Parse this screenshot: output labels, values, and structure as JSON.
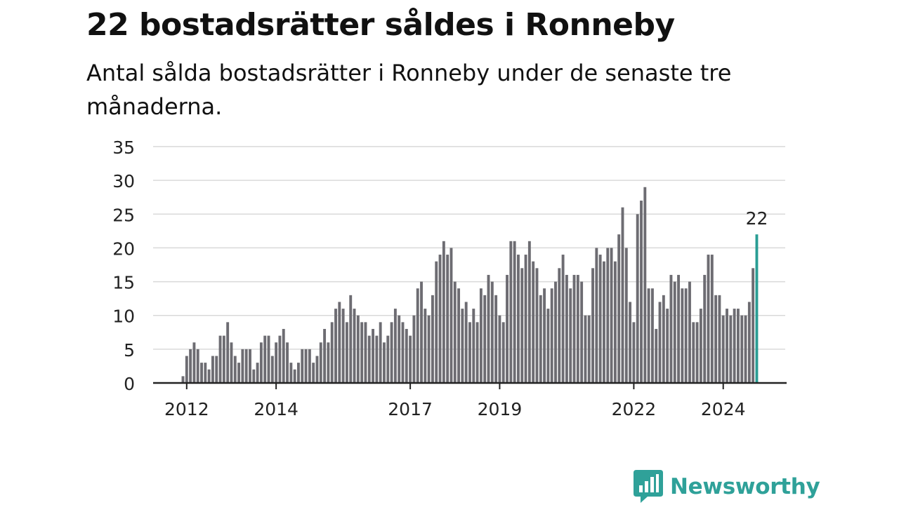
{
  "title": "22 bostadsrätter såldes i Ronneby",
  "subtitle": "Antal sålda bostadsrätter i Ronneby under de senaste tre månaderna.",
  "brand": {
    "name": "Newsworthy",
    "logo_icon": "bar-chart-speech-bubble-icon",
    "color": "#2fa199"
  },
  "chart_data": {
    "type": "bar",
    "title": "22 bostadsrätter såldes i Ronneby",
    "subtitle": "Antal sålda bostadsrätter i Ronneby under de senaste tre månaderna.",
    "xlabel": "",
    "ylabel": "",
    "ylim": [
      0,
      35
    ],
    "yticks": [
      "0",
      "5",
      "10",
      "15",
      "20",
      "25",
      "30",
      "35"
    ],
    "xticks": [
      {
        "label": "2012",
        "index": 1
      },
      {
        "label": "2014",
        "index": 25
      },
      {
        "label": "2017",
        "index": 61
      },
      {
        "label": "2019",
        "index": 85
      },
      {
        "label": "2022",
        "index": 121
      },
      {
        "label": "2024",
        "index": 145
      }
    ],
    "grid": true,
    "bar_color": "#6d6c72",
    "highlight_color": "#2a9d94",
    "highlight_label": "22",
    "values": [
      1,
      4,
      5,
      6,
      5,
      3,
      3,
      2,
      4,
      4,
      7,
      7,
      9,
      6,
      4,
      3,
      5,
      5,
      5,
      2,
      3,
      6,
      7,
      7,
      4,
      6,
      7,
      8,
      6,
      3,
      2,
      3,
      5,
      5,
      5,
      3,
      4,
      6,
      8,
      6,
      9,
      11,
      12,
      11,
      9,
      13,
      11,
      10,
      9,
      9,
      7,
      8,
      7,
      9,
      6,
      7,
      9,
      11,
      10,
      9,
      8,
      7,
      10,
      14,
      15,
      11,
      10,
      13,
      18,
      19,
      21,
      19,
      20,
      15,
      14,
      11,
      12,
      9,
      11,
      9,
      14,
      13,
      16,
      15,
      13,
      10,
      9,
      16,
      21,
      21,
      19,
      17,
      19,
      21,
      18,
      17,
      13,
      14,
      11,
      14,
      15,
      17,
      19,
      16,
      14,
      16,
      16,
      15,
      10,
      10,
      17,
      20,
      19,
      18,
      20,
      20,
      18,
      22,
      26,
      20,
      12,
      9,
      25,
      27,
      29,
      14,
      14,
      8,
      12,
      13,
      11,
      16,
      15,
      16,
      14,
      14,
      15,
      9,
      9,
      11,
      16,
      19,
      19,
      13,
      13,
      10,
      11,
      10,
      11,
      11,
      10,
      10,
      12,
      17,
      22
    ]
  }
}
